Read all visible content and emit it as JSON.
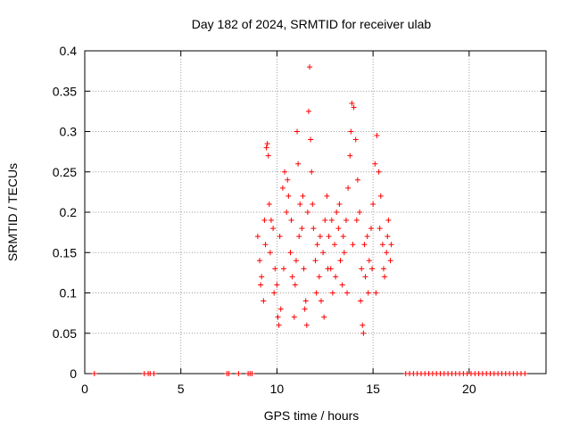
{
  "chart_data": {
    "type": "scatter",
    "title": "Day 182 of 2024, SRMTID for receiver ulab",
    "xlabel": "GPS time / hours",
    "ylabel": "SRMTID / TECUs",
    "xlim": [
      0,
      24
    ],
    "ylim": [
      0,
      0.4
    ],
    "xticks": [
      "0",
      "5",
      "10",
      "15",
      "20"
    ],
    "yticks": [
      "0",
      "0.05",
      "0.1",
      "0.15",
      "0.2",
      "0.25",
      "0.3",
      "0.35",
      "0.4"
    ],
    "grid": true,
    "marker": "+",
    "color": "#ff0000",
    "series": [
      {
        "name": "SRMTID",
        "points": [
          [
            0.5,
            0
          ],
          [
            3.1,
            0
          ],
          [
            3.3,
            0
          ],
          [
            3.4,
            0
          ],
          [
            3.6,
            0
          ],
          [
            7.4,
            0
          ],
          [
            7.5,
            0
          ],
          [
            8.0,
            0
          ],
          [
            8.5,
            0
          ],
          [
            8.6,
            0
          ],
          [
            8.7,
            0
          ],
          [
            16.7,
            0
          ],
          [
            16.9,
            0
          ],
          [
            17.1,
            0
          ],
          [
            17.3,
            0
          ],
          [
            17.5,
            0
          ],
          [
            17.7,
            0
          ],
          [
            17.9,
            0
          ],
          [
            18.1,
            0
          ],
          [
            18.3,
            0
          ],
          [
            18.5,
            0
          ],
          [
            18.7,
            0
          ],
          [
            18.9,
            0
          ],
          [
            19.1,
            0
          ],
          [
            19.3,
            0
          ],
          [
            19.5,
            0
          ],
          [
            19.7,
            0
          ],
          [
            19.9,
            0
          ],
          [
            20.1,
            0
          ],
          [
            20.3,
            0
          ],
          [
            20.5,
            0
          ],
          [
            20.7,
            0
          ],
          [
            20.9,
            0
          ],
          [
            21.1,
            0
          ],
          [
            21.3,
            0
          ],
          [
            21.5,
            0
          ],
          [
            21.7,
            0
          ],
          [
            21.9,
            0
          ],
          [
            22.1,
            0
          ],
          [
            22.3,
            0
          ],
          [
            22.5,
            0
          ],
          [
            22.7,
            0
          ],
          [
            22.9,
            0
          ],
          [
            9.0,
            0.17
          ],
          [
            9.1,
            0.14
          ],
          [
            9.2,
            0.12
          ],
          [
            9.3,
            0.09
          ],
          [
            9.4,
            0.16
          ],
          [
            9.45,
            0.28
          ],
          [
            9.5,
            0.285
          ],
          [
            9.55,
            0.27
          ],
          [
            9.6,
            0.21
          ],
          [
            9.7,
            0.19
          ],
          [
            9.8,
            0.18
          ],
          [
            9.9,
            0.13
          ],
          [
            10.0,
            0.11
          ],
          [
            10.05,
            0.07
          ],
          [
            10.1,
            0.06
          ],
          [
            10.2,
            0.08
          ],
          [
            10.3,
            0.23
          ],
          [
            10.4,
            0.25
          ],
          [
            10.5,
            0.2
          ],
          [
            10.6,
            0.22
          ],
          [
            10.7,
            0.15
          ],
          [
            10.8,
            0.12
          ],
          [
            10.9,
            0.07
          ],
          [
            11.0,
            0.14
          ],
          [
            11.05,
            0.3
          ],
          [
            11.1,
            0.26
          ],
          [
            11.2,
            0.21
          ],
          [
            11.3,
            0.18
          ],
          [
            11.4,
            0.13
          ],
          [
            11.5,
            0.09
          ],
          [
            11.55,
            0.06
          ],
          [
            11.6,
            0.2
          ],
          [
            11.65,
            0.325
          ],
          [
            11.7,
            0.38
          ],
          [
            11.75,
            0.29
          ],
          [
            11.8,
            0.25
          ],
          [
            11.9,
            0.18
          ],
          [
            12.0,
            0.14
          ],
          [
            12.1,
            0.16
          ],
          [
            12.2,
            0.12
          ],
          [
            12.3,
            0.09
          ],
          [
            12.4,
            0.15
          ],
          [
            12.5,
            0.19
          ],
          [
            12.6,
            0.22
          ],
          [
            12.7,
            0.17
          ],
          [
            12.8,
            0.13
          ],
          [
            12.9,
            0.1
          ],
          [
            13.0,
            0.16
          ],
          [
            13.1,
            0.2
          ],
          [
            13.2,
            0.18
          ],
          [
            13.3,
            0.14
          ],
          [
            13.4,
            0.11
          ],
          [
            13.5,
            0.15
          ],
          [
            13.6,
            0.19
          ],
          [
            13.7,
            0.23
          ],
          [
            13.8,
            0.27
          ],
          [
            13.85,
            0.3
          ],
          [
            13.9,
            0.335
          ],
          [
            14.0,
            0.33
          ],
          [
            14.1,
            0.29
          ],
          [
            14.2,
            0.24
          ],
          [
            14.3,
            0.2
          ],
          [
            14.4,
            0.13
          ],
          [
            14.45,
            0.06
          ],
          [
            14.5,
            0.05
          ],
          [
            14.6,
            0.12
          ],
          [
            14.7,
            0.17
          ],
          [
            14.8,
            0.14
          ],
          [
            14.9,
            0.18
          ],
          [
            15.0,
            0.21
          ],
          [
            15.1,
            0.26
          ],
          [
            15.2,
            0.295
          ],
          [
            15.3,
            0.25
          ],
          [
            15.4,
            0.22
          ],
          [
            15.5,
            0.16
          ],
          [
            15.6,
            0.12
          ],
          [
            15.7,
            0.15
          ],
          [
            15.8,
            0.19
          ],
          [
            15.9,
            0.14
          ],
          [
            9.15,
            0.11
          ],
          [
            9.35,
            0.19
          ],
          [
            9.65,
            0.15
          ],
          [
            9.85,
            0.1
          ],
          [
            10.15,
            0.17
          ],
          [
            10.35,
            0.13
          ],
          [
            10.55,
            0.24
          ],
          [
            10.75,
            0.19
          ],
          [
            10.95,
            0.11
          ],
          [
            11.15,
            0.17
          ],
          [
            11.35,
            0.22
          ],
          [
            11.45,
            0.08
          ],
          [
            11.85,
            0.21
          ],
          [
            12.05,
            0.1
          ],
          [
            12.25,
            0.17
          ],
          [
            12.45,
            0.07
          ],
          [
            12.65,
            0.13
          ],
          [
            12.85,
            0.19
          ],
          [
            13.05,
            0.12
          ],
          [
            13.25,
            0.21
          ],
          [
            13.45,
            0.17
          ],
          [
            13.65,
            0.1
          ],
          [
            13.95,
            0.16
          ],
          [
            14.15,
            0.19
          ],
          [
            14.35,
            0.09
          ],
          [
            14.55,
            0.16
          ],
          [
            14.75,
            0.1
          ],
          [
            14.95,
            0.13
          ],
          [
            15.15,
            0.1
          ],
          [
            15.35,
            0.18
          ],
          [
            15.55,
            0.13
          ],
          [
            15.75,
            0.17
          ],
          [
            15.95,
            0.16
          ]
        ]
      }
    ]
  }
}
